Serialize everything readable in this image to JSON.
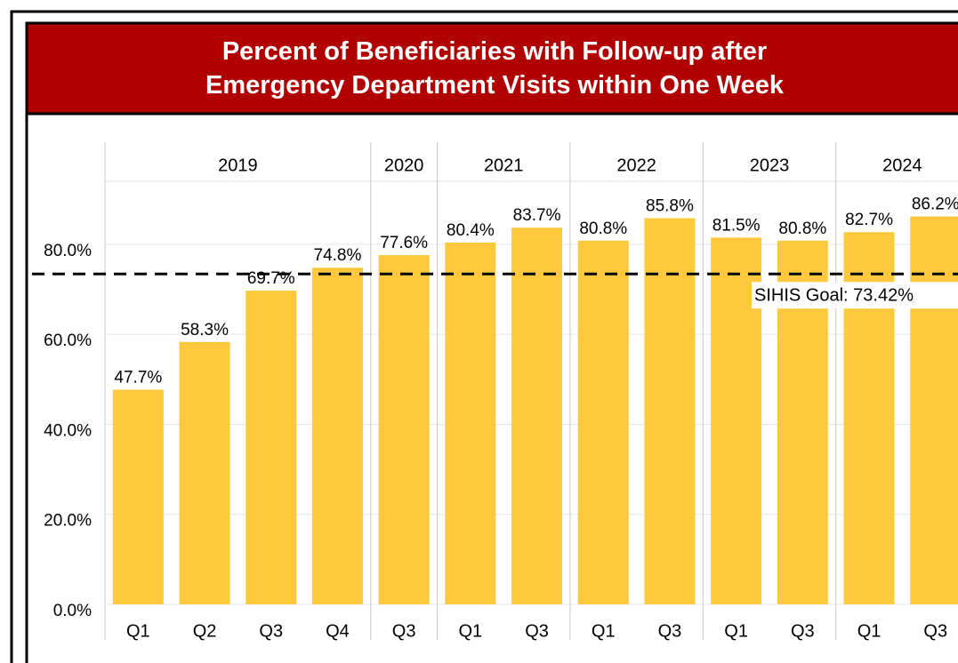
{
  "chart_data": {
    "type": "bar",
    "title": "Percent of Beneficiaries with Follow-up after Emergency Department Visits within One Week",
    "categories": [
      "Q1",
      "Q2",
      "Q3",
      "Q4",
      "Q3",
      "Q1",
      "Q3",
      "Q1",
      "Q3",
      "Q1",
      "Q3",
      "Q1",
      "Q3"
    ],
    "groups": [
      {
        "label": "2019",
        "span": 4
      },
      {
        "label": "2020",
        "span": 1
      },
      {
        "label": "2021",
        "span": 2
      },
      {
        "label": "2022",
        "span": 2
      },
      {
        "label": "2023",
        "span": 2
      },
      {
        "label": "2024",
        "span": 2
      }
    ],
    "values": [
      47.7,
      58.3,
      69.7,
      74.8,
      77.6,
      80.4,
      83.7,
      80.8,
      85.8,
      81.5,
      80.8,
      82.7,
      86.2
    ],
    "value_labels": [
      "47.7%",
      "58.3%",
      "69.7%",
      "74.8%",
      "77.6%",
      "80.4%",
      "83.7%",
      "80.8%",
      "85.8%",
      "81.5%",
      "80.8%",
      "82.7%",
      "86.2%"
    ],
    "color": "#ffc83d",
    "ylim": [
      0,
      94
    ],
    "yticks": [
      {
        "value": 0,
        "label": "0.0%"
      },
      {
        "value": 20,
        "label": "20.0%"
      },
      {
        "value": 40,
        "label": "40.0%"
      },
      {
        "value": 60,
        "label": "60.0%"
      },
      {
        "value": 80,
        "label": "80.0%"
      }
    ],
    "grid": true,
    "goal": {
      "value": 73.42,
      "label": "SIHIS Goal: 73.42%"
    }
  }
}
